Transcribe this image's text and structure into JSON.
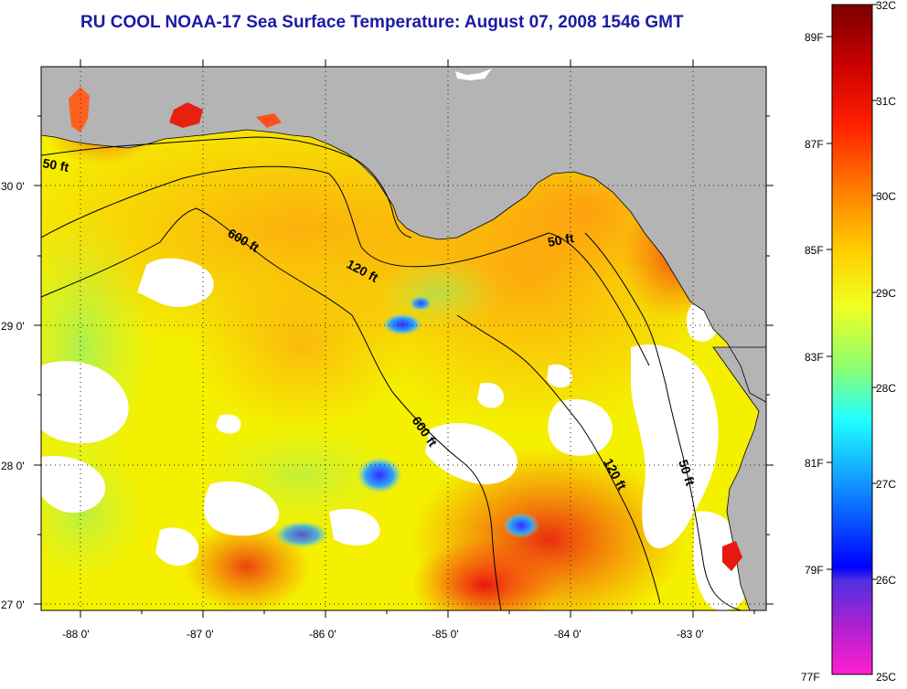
{
  "title": "RU COOL  NOAA-17  Sea Surface Temperature:  August 07, 2008 1546 GMT",
  "map": {
    "lon_ticks": [
      "-88 0'",
      "-87 0'",
      "-86 0'",
      "-85 0'",
      "-84 0'",
      "-83 0'"
    ],
    "lat_ticks": [
      "27 0'",
      "28 0'",
      "29 0'",
      "30 0'"
    ],
    "depth_labels": [
      "50 ft",
      "600 ft",
      "120 ft",
      "50 ft",
      "600 ft",
      "120 ft",
      "50 ft"
    ],
    "colors": {
      "land": "#b4b4b4",
      "no_data": "#ffffff",
      "gridline": "#333333"
    }
  },
  "colorbar": {
    "fahrenheit_labels": [
      "89F",
      "87F",
      "85F",
      "83F",
      "81F",
      "79F",
      "77F"
    ],
    "celsius_labels": [
      "32C",
      "31C",
      "30C",
      "29C",
      "28C",
      "27C",
      "26C",
      "25C"
    ],
    "gradient_colors": [
      "#7a0000",
      "#cc0000",
      "#ff2000",
      "#ff8000",
      "#ffd000",
      "#f0ff20",
      "#90ff70",
      "#20ffff",
      "#1090ff",
      "#0000ff",
      "#8020d0",
      "#ff20d0"
    ]
  }
}
